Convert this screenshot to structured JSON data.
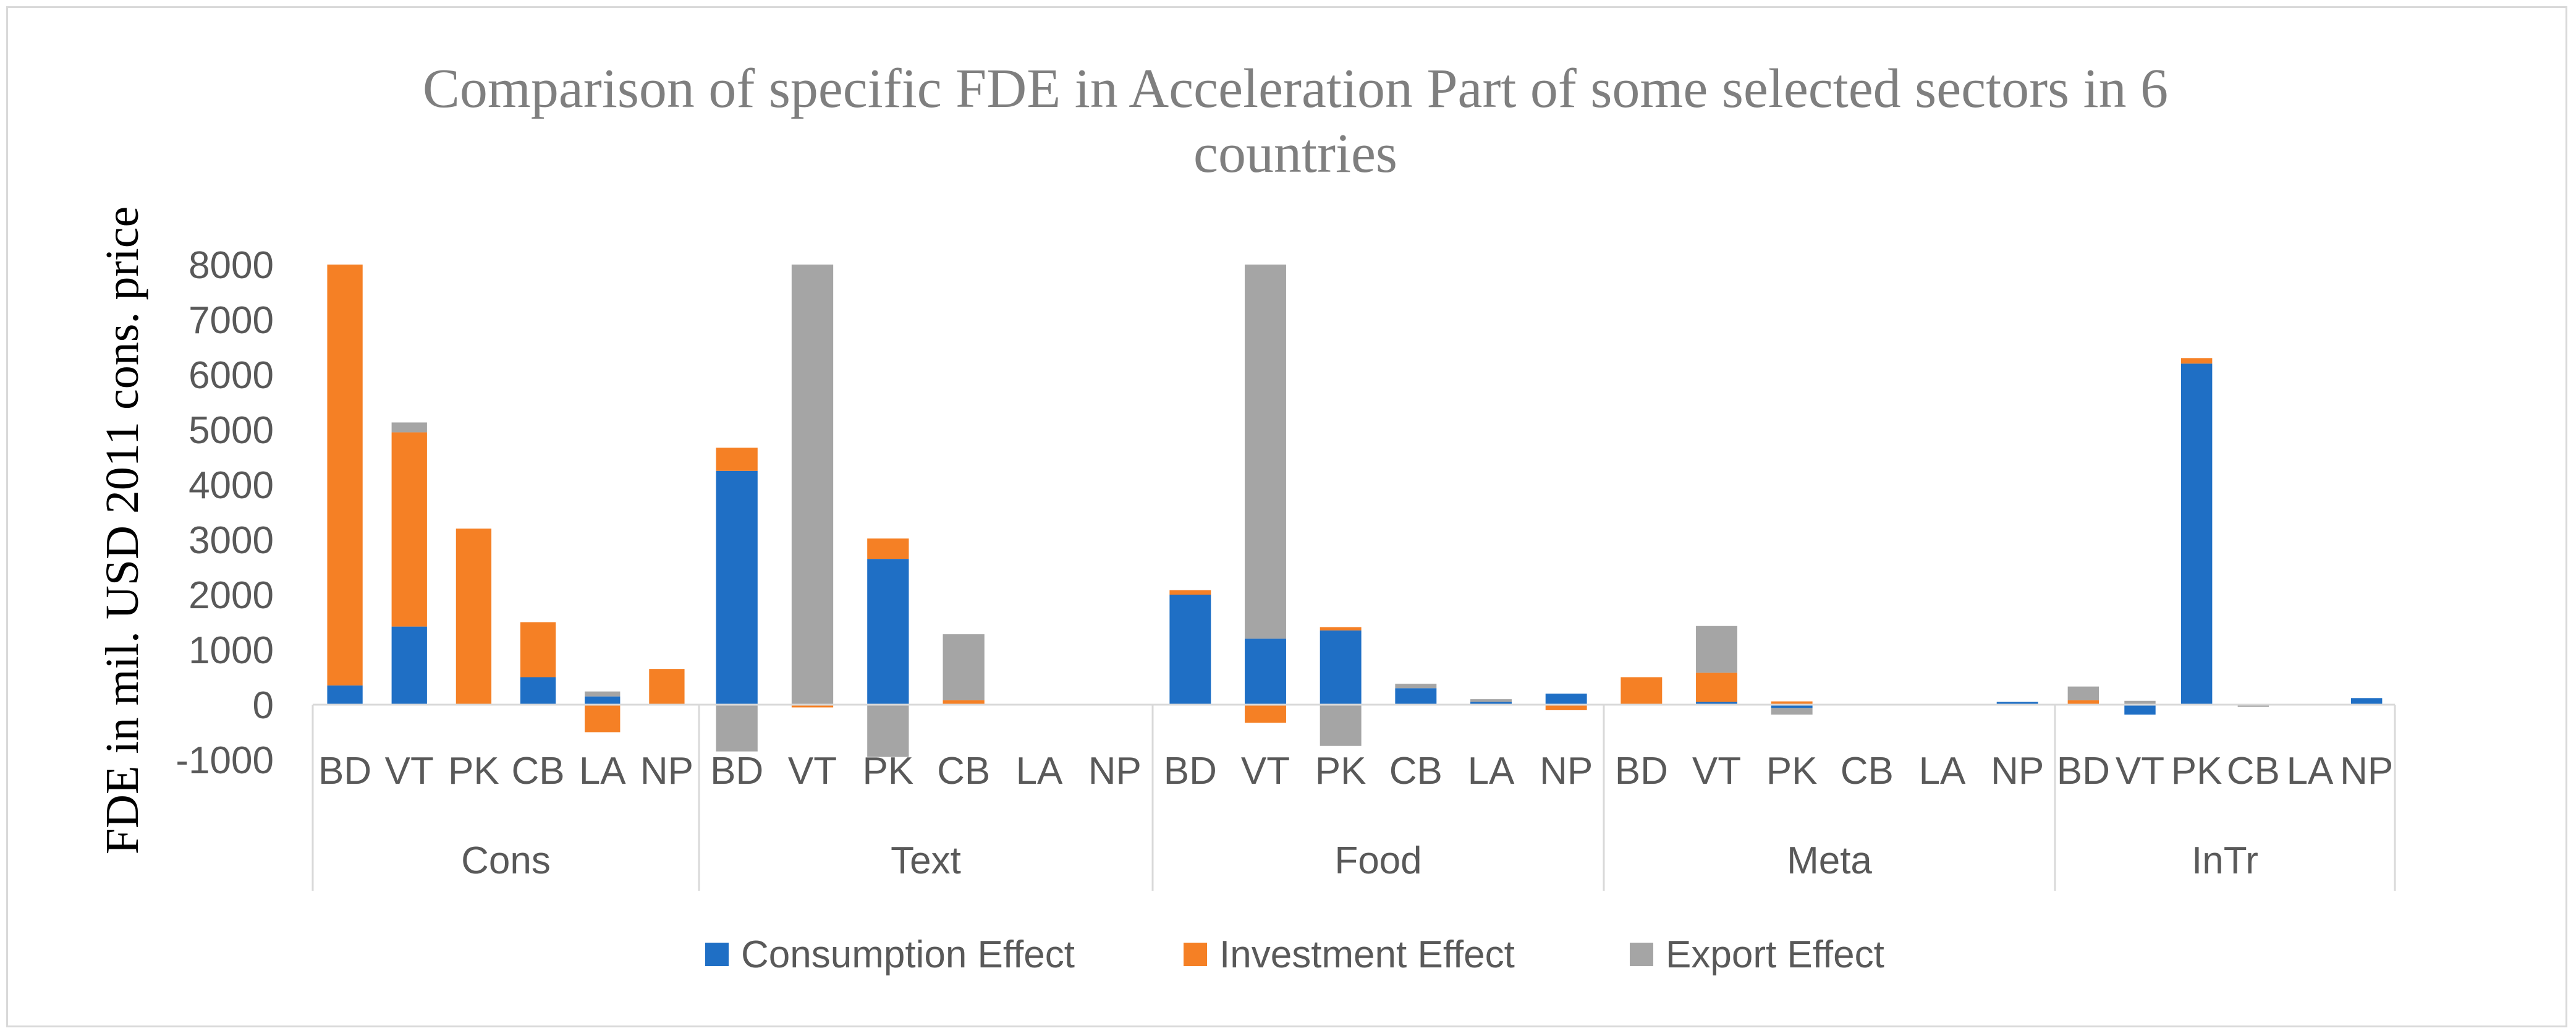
{
  "chart_data": {
    "type": "bar",
    "stacked": true,
    "title": "Comparison of specific FDE in Acceleration Part of some selected sectors in 6 countries",
    "title_lines": [
      "Comparison of specific FDE in Acceleration Part of some selected sectors in 6",
      "countries"
    ],
    "xlabel": "",
    "ylabel": "FDE in mil. USD 2011 cons. price",
    "ylim": [
      -1000,
      8000
    ],
    "yticks": [
      -1000,
      0,
      1000,
      2000,
      3000,
      4000,
      5000,
      6000,
      7000,
      8000
    ],
    "groups": [
      "Cons",
      "Text",
      "Food",
      "Meta",
      "InTr"
    ],
    "categories": [
      "BD",
      "VT",
      "PK",
      "CB",
      "LA",
      "NP"
    ],
    "series": [
      {
        "name": "Consumption Effect",
        "color": "#1f6fc5",
        "values": [
          [
            350,
            1420,
            0,
            500,
            150,
            0
          ],
          [
            4250,
            0,
            2650,
            0,
            0,
            0
          ],
          [
            2000,
            1200,
            1350,
            300,
            50,
            200
          ],
          [
            0,
            50,
            -60,
            0,
            0,
            50
          ],
          [
            0,
            -180,
            6200,
            0,
            0,
            120
          ]
        ]
      },
      {
        "name": "Investment Effect",
        "color": "#f58025",
        "values": [
          [
            7650,
            3530,
            3200,
            1000,
            -500,
            650
          ],
          [
            420,
            -50,
            370,
            80,
            0,
            0
          ],
          [
            80,
            -330,
            60,
            0,
            0,
            -100
          ],
          [
            500,
            530,
            60,
            0,
            0,
            0
          ],
          [
            80,
            0,
            100,
            -10,
            0,
            0
          ]
        ]
      },
      {
        "name": "Export Effect",
        "color": "#a5a5a5",
        "values": [
          [
            0,
            180,
            0,
            0,
            90,
            0
          ],
          [
            -850,
            8000,
            -950,
            1200,
            0,
            0
          ],
          [
            0,
            6800,
            -750,
            80,
            50,
            0
          ],
          [
            0,
            850,
            -120,
            0,
            0,
            0
          ],
          [
            250,
            70,
            0,
            -30,
            0,
            0
          ]
        ]
      }
    ],
    "grid": false,
    "legend": "bottom"
  }
}
